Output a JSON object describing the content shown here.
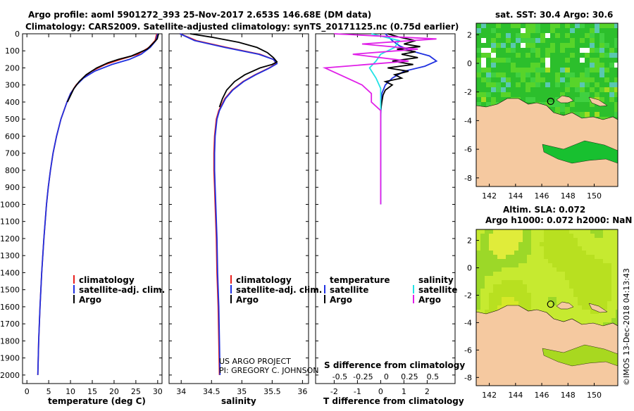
{
  "title": {
    "line1": "Argo profile: aoml 5901272_393 25-Nov-2017 2.653S 146.68E (DM data)",
    "line2": "Climatology: CARS2009. Satellite-adjusted climatology: synTS_20171125.nc (0.75d earlier)"
  },
  "credit": {
    "line1": "US ARGO PROJECT",
    "line2": "PI: GREGORY C. JOHNSON"
  },
  "stamp": "©IMOS 13-Dec-2018 04:13:43",
  "depth_ticks": [
    0,
    100,
    200,
    300,
    400,
    500,
    600,
    700,
    800,
    900,
    1000,
    1100,
    1200,
    1300,
    1400,
    1500,
    1600,
    1700,
    1800,
    1900,
    2000
  ],
  "colors": {
    "climatology": "#e8201e",
    "satellite": "#1f30e0",
    "argo": "#000000",
    "sat_salinity": "#22e2e6",
    "clim_salinity": "#e020e8"
  },
  "legend": {
    "climatology": "climatology",
    "satellite_adj": "satellite-adj. clim.",
    "argo": "Argo",
    "temperature": "temperature",
    "salinity": "salinity",
    "satellite": "satellite"
  },
  "chart_data": [
    {
      "type": "line",
      "name": "temperature",
      "xlabel": "temperature (deg C)",
      "xlim": [
        -1,
        31
      ],
      "ylim": [
        0,
        2050
      ],
      "xticks": [
        0,
        5,
        10,
        15,
        20,
        25,
        30
      ],
      "series": [
        {
          "name": "climatology",
          "depth": [
            0,
            40,
            80,
            120,
            150,
            180,
            220,
            260,
            300,
            350,
            400,
            500,
            600,
            700,
            800,
            900,
            1000,
            1200,
            1400,
            1600,
            1800,
            2000
          ],
          "values": [
            29.8,
            29.4,
            28.0,
            25.5,
            21.5,
            18.0,
            14.8,
            12.8,
            11.3,
            10.0,
            9.2,
            7.8,
            6.8,
            6.0,
            5.4,
            4.9,
            4.5,
            3.9,
            3.4,
            3.0,
            2.7,
            2.5
          ]
        },
        {
          "name": "satellite-adj. clim.",
          "depth": [
            0,
            40,
            80,
            120,
            150,
            180,
            220,
            260,
            300,
            350,
            400,
            500,
            600,
            700,
            800,
            900,
            1000,
            1200,
            1400,
            1600,
            1800,
            2000
          ],
          "values": [
            30.0,
            29.6,
            28.3,
            26.2,
            23.5,
            19.5,
            15.5,
            13.0,
            11.4,
            10.0,
            9.2,
            7.8,
            6.8,
            6.0,
            5.4,
            4.9,
            4.5,
            3.9,
            3.4,
            3.0,
            2.7,
            2.5
          ]
        },
        {
          "name": "Argo",
          "depth": [
            0,
            30,
            60,
            90,
            110,
            130,
            150,
            170,
            200,
            240,
            280,
            320,
            400
          ],
          "values": [
            30.2,
            29.9,
            28.8,
            27.6,
            25.8,
            24.0,
            21.0,
            18.6,
            16.0,
            13.6,
            12.0,
            10.8,
            9.3
          ]
        }
      ]
    },
    {
      "type": "line",
      "name": "salinity",
      "xlabel": "salinity",
      "xlim": [
        33.8,
        36.1
      ],
      "ylim": [
        0,
        2050
      ],
      "xticks": [
        34,
        34.5,
        35,
        35.5,
        36
      ],
      "series": [
        {
          "name": "climatology",
          "depth": [
            0,
            40,
            80,
            120,
            150,
            175,
            200,
            240,
            280,
            330,
            380,
            450,
            500,
            600,
            700,
            800,
            900,
            1000,
            1200,
            1400,
            1600,
            1800,
            2000
          ],
          "values": [
            33.98,
            34.25,
            34.75,
            35.3,
            35.52,
            35.57,
            35.45,
            35.22,
            35.02,
            34.84,
            34.72,
            34.62,
            34.58,
            34.55,
            34.54,
            34.54,
            34.55,
            34.56,
            34.58,
            34.59,
            34.61,
            34.62,
            34.63
          ]
        },
        {
          "name": "satellite-adj. clim.",
          "depth": [
            0,
            40,
            80,
            120,
            150,
            175,
            200,
            240,
            280,
            330,
            380,
            450,
            500,
            600,
            700,
            800,
            900,
            1000,
            1200,
            1400,
            1600,
            1800,
            2000
          ],
          "values": [
            33.98,
            34.22,
            34.72,
            35.28,
            35.52,
            35.58,
            35.46,
            35.23,
            35.03,
            34.85,
            34.73,
            34.63,
            34.59,
            34.56,
            34.55,
            34.55,
            34.56,
            34.57,
            34.59,
            34.6,
            34.62,
            34.63,
            34.64
          ]
        },
        {
          "name": "Argo",
          "depth": [
            0,
            20,
            50,
            80,
            110,
            140,
            165,
            180,
            200,
            240,
            280,
            330,
            380,
            430
          ],
          "values": [
            34.15,
            34.5,
            34.95,
            35.25,
            35.42,
            35.52,
            35.58,
            35.5,
            35.3,
            35.05,
            34.88,
            34.75,
            34.68,
            34.63
          ]
        }
      ]
    },
    {
      "type": "line",
      "name": "difference",
      "xlabel": "T difference from climatology",
      "top_label": "S difference from climatology",
      "xlim": [
        -2.8,
        3.2
      ],
      "ylim": [
        0,
        2050
      ],
      "xticks": [
        -2,
        -1,
        0,
        1,
        2
      ],
      "xticks_top_labels": [
        "-0.5",
        "-0.25",
        "0",
        "0.25",
        "0.5"
      ],
      "series": [
        {
          "name": "temperature satellite",
          "depth": [
            0,
            40,
            70,
            100,
            130,
            160,
            190,
            220,
            260,
            300,
            350,
            400,
            500,
            600,
            700,
            800,
            900,
            1000
          ],
          "values": [
            0.2,
            0.5,
            0.8,
            1.3,
            2.1,
            2.4,
            1.9,
            1.0,
            0.5,
            0.2,
            0.05,
            0.02,
            0,
            0,
            0,
            0,
            0,
            0
          ]
        },
        {
          "name": "temperature Argo",
          "depth": [
            0,
            20,
            40,
            60,
            75,
            90,
            105,
            120,
            140,
            160,
            180,
            200,
            220,
            240,
            260,
            280,
            300,
            330,
            360,
            400,
            450
          ],
          "values": [
            0.3,
            0.8,
            1.5,
            1.0,
            1.7,
            0.7,
            1.5,
            0.9,
            1.6,
            0.5,
            1.4,
            0.3,
            1.2,
            0.6,
            0.9,
            0.2,
            0.5,
            0.2,
            0.1,
            0.05,
            0
          ]
        },
        {
          "name": "salinity satellite",
          "depth": [
            0,
            40,
            80,
            120,
            160,
            200,
            260,
            320,
            400,
            500,
            600,
            700,
            800,
            900,
            1000
          ],
          "values": [
            -0.1,
            0.2,
            0.15,
            0.0,
            -0.05,
            -0.12,
            -0.05,
            0.0,
            0.0,
            0.0,
            0.0,
            0.0,
            0.0,
            0.0,
            0.0
          ]
        },
        {
          "name": "salinity Argo",
          "depth": [
            0,
            30,
            60,
            90,
            120,
            160,
            200,
            250,
            300,
            350,
            400,
            450,
            500,
            600,
            700,
            800,
            900,
            1000
          ],
          "values": [
            -0.5,
            0.6,
            -0.2,
            0.4,
            -0.3,
            0.3,
            -0.6,
            -0.4,
            -0.2,
            -0.1,
            -0.1,
            0,
            0,
            0,
            0,
            0,
            0,
            0
          ]
        }
      ]
    },
    {
      "type": "heatmap",
      "name": "sst map",
      "title": "sat. SST: 30.4 Argo: 30.6",
      "xticks": [
        142,
        144,
        146,
        148,
        150
      ],
      "yticks": [
        2,
        0,
        -2,
        -4,
        -6,
        -8
      ],
      "marker": {
        "lon": 146.68,
        "lat": -2.653
      }
    },
    {
      "type": "heatmap",
      "name": "sla map",
      "title_line1": "Altim. SLA: 0.072",
      "title_line2": "Argo h1000: 0.072 h2000: NaN",
      "xticks": [
        142,
        144,
        146,
        148,
        150
      ],
      "yticks": [
        2,
        0,
        -2,
        -4,
        -6,
        -8
      ],
      "marker": {
        "lon": 146.68,
        "lat": -2.653
      }
    }
  ]
}
